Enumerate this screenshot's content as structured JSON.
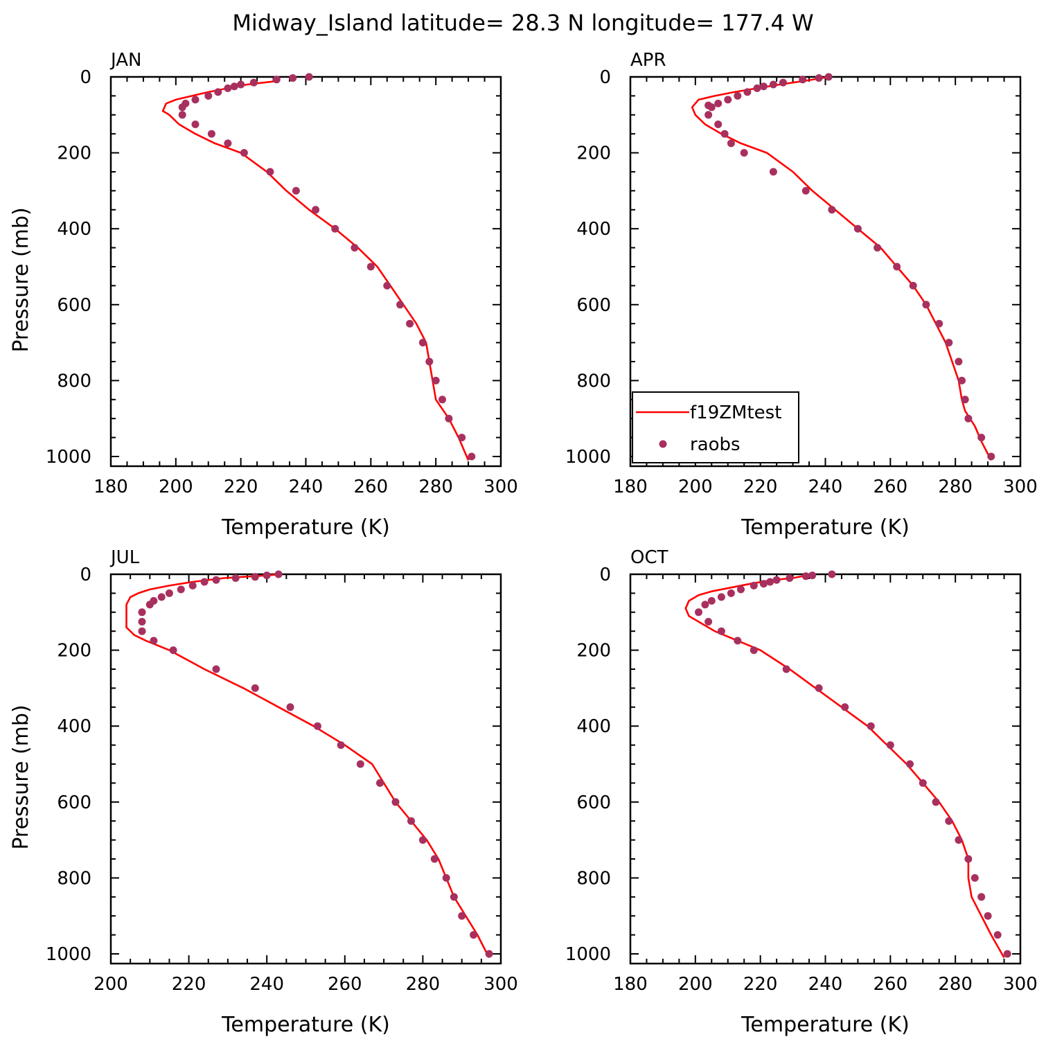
{
  "title": "Midway_Island   latitude= 28.3 N longitude= 177.4 W",
  "legend": {
    "model_label": "f19ZMtest",
    "obs_label": "raobs",
    "placement": "bottom-left of APR panel"
  },
  "colors": {
    "model": "#ff0000",
    "obs": "#a8305f",
    "axis": "#000000"
  },
  "chart_data": [
    {
      "type": "line",
      "panel": "JAN",
      "xlabel": "Temperature (K)",
      "ylabel": "Pressure (mb)",
      "xlim": [
        180,
        300
      ],
      "ylim": [
        1000,
        0
      ],
      "y_inverted": true,
      "xticks": [
        "180",
        "200",
        "220",
        "240",
        "260",
        "280",
        "300"
      ],
      "yticks": [
        "0",
        "200",
        "400",
        "600",
        "800",
        "1000"
      ],
      "series": [
        {
          "name": "f19ZMtest",
          "kind": "line",
          "x": [
            232,
            227,
            222,
            216,
            210,
            205,
            200,
            197,
            196,
            198,
            201,
            206,
            212,
            220,
            228,
            234,
            241,
            249,
            256,
            262,
            266,
            270,
            274,
            277,
            278,
            279,
            280,
            284,
            287,
            290
          ],
          "y": [
            10,
            15,
            20,
            30,
            40,
            50,
            60,
            70,
            90,
            100,
            125,
            150,
            175,
            200,
            250,
            300,
            350,
            400,
            450,
            500,
            550,
            600,
            650,
            700,
            750,
            800,
            850,
            900,
            950,
            1010
          ]
        },
        {
          "name": "raobs",
          "kind": "scatter",
          "x": [
            241,
            236,
            231,
            224,
            220,
            218,
            216,
            213,
            210,
            206,
            203,
            202,
            202,
            206,
            211,
            216,
            221,
            229,
            237,
            243,
            249,
            255,
            260,
            265,
            269,
            272,
            276,
            278,
            280,
            282,
            284,
            288,
            291
          ],
          "y": [
            0,
            3,
            7,
            15,
            20,
            25,
            30,
            40,
            50,
            60,
            70,
            80,
            100,
            125,
            150,
            175,
            200,
            250,
            300,
            350,
            400,
            450,
            500,
            550,
            600,
            650,
            700,
            750,
            800,
            850,
            900,
            950,
            1000
          ]
        }
      ]
    },
    {
      "type": "line",
      "panel": "APR",
      "xlabel": "Temperature (K)",
      "ylabel": "",
      "xlim": [
        180,
        300
      ],
      "ylim": [
        1000,
        0
      ],
      "y_inverted": true,
      "xticks": [
        "180",
        "200",
        "220",
        "240",
        "260",
        "280",
        "300"
      ],
      "yticks": [
        "0",
        "200",
        "400",
        "600",
        "800",
        "1000"
      ],
      "series": [
        {
          "name": "f19ZMtest",
          "kind": "line",
          "x": [
            241,
            234,
            226,
            219,
            212,
            206,
            201,
            199,
            200,
            203,
            208,
            214,
            222,
            230,
            236,
            243,
            250,
            257,
            262,
            267,
            271,
            274,
            277,
            279,
            281,
            282,
            283,
            286,
            288,
            291
          ],
          "y": [
            0,
            10,
            20,
            30,
            40,
            50,
            60,
            80,
            100,
            125,
            150,
            175,
            200,
            250,
            300,
            350,
            400,
            450,
            500,
            550,
            600,
            650,
            700,
            750,
            800,
            850,
            880,
            920,
            960,
            1010
          ]
        },
        {
          "name": "raobs",
          "kind": "scatter",
          "x": [
            241,
            238,
            233,
            227,
            224,
            221,
            219,
            216,
            213,
            210,
            207,
            205,
            204,
            204,
            207,
            209,
            211,
            215,
            224,
            234,
            242,
            250,
            256,
            262,
            267,
            271,
            275,
            278,
            281,
            282,
            283,
            284,
            288,
            291
          ],
          "y": [
            0,
            3,
            7,
            15,
            20,
            25,
            30,
            40,
            50,
            60,
            70,
            80,
            100,
            75,
            125,
            150,
            175,
            200,
            250,
            300,
            350,
            400,
            450,
            500,
            550,
            600,
            650,
            700,
            750,
            800,
            850,
            900,
            950,
            1000
          ]
        }
      ]
    },
    {
      "type": "line",
      "panel": "JUL",
      "xlabel": "Temperature (K)",
      "ylabel": "Pressure (mb)",
      "xlim": [
        200,
        300
      ],
      "ylim": [
        1000,
        0
      ],
      "y_inverted": true,
      "xticks": [
        "200",
        "220",
        "240",
        "260",
        "280",
        "300"
      ],
      "yticks": [
        "0",
        "200",
        "400",
        "600",
        "800",
        "1000"
      ],
      "series": [
        {
          "name": "f19ZMtest",
          "kind": "line",
          "x": [
            244,
            237,
            229,
            221,
            215,
            210,
            207,
            205,
            204,
            204,
            206,
            209,
            215,
            224,
            234,
            243,
            252,
            260,
            267,
            273,
            277,
            281,
            284,
            286,
            288,
            291,
            294,
            297
          ],
          "y": [
            0,
            5,
            10,
            20,
            30,
            40,
            50,
            60,
            80,
            140,
            160,
            175,
            200,
            250,
            300,
            350,
            400,
            450,
            500,
            600,
            650,
            700,
            750,
            800,
            850,
            900,
            950,
            1010
          ]
        },
        {
          "name": "raobs",
          "kind": "scatter",
          "x": [
            243,
            240,
            237,
            232,
            227,
            224,
            221,
            218,
            215,
            213,
            211,
            210,
            208,
            208,
            208,
            211,
            216,
            227,
            237,
            246,
            253,
            259,
            264,
            269,
            273,
            277,
            280,
            283,
            286,
            288,
            290,
            293,
            297
          ],
          "y": [
            0,
            3,
            7,
            10,
            15,
            20,
            30,
            40,
            50,
            60,
            70,
            80,
            100,
            125,
            150,
            175,
            200,
            250,
            300,
            350,
            400,
            450,
            500,
            550,
            600,
            650,
            700,
            750,
            800,
            850,
            900,
            950,
            1000
          ]
        }
      ]
    },
    {
      "type": "line",
      "panel": "OCT",
      "xlabel": "Temperature (K)",
      "ylabel": "",
      "xlim": [
        180,
        300
      ],
      "ylim": [
        1000,
        0
      ],
      "y_inverted": true,
      "xticks": [
        "180",
        "200",
        "220",
        "240",
        "260",
        "280",
        "300"
      ],
      "yticks": [
        "0",
        "200",
        "400",
        "600",
        "800",
        "1000"
      ],
      "series": [
        {
          "name": "f19ZMtest",
          "kind": "line",
          "x": [
            236,
            230,
            224,
            217,
            211,
            205,
            201,
            198,
            197,
            198,
            201,
            206,
            213,
            220,
            229,
            237,
            245,
            253,
            259,
            265,
            270,
            275,
            279,
            282,
            284,
            284,
            285,
            288,
            291,
            295
          ],
          "y": [
            0,
            10,
            15,
            25,
            35,
            45,
            55,
            70,
            90,
            110,
            125,
            150,
            175,
            200,
            250,
            300,
            350,
            400,
            450,
            500,
            550,
            600,
            650,
            700,
            750,
            800,
            850,
            900,
            950,
            1010
          ]
        },
        {
          "name": "raobs",
          "kind": "scatter",
          "x": [
            242,
            236,
            234,
            229,
            225,
            223,
            221,
            218,
            214,
            211,
            208,
            205,
            203,
            201,
            204,
            208,
            213,
            218,
            228,
            238,
            246,
            254,
            260,
            266,
            270,
            274,
            278,
            281,
            284,
            286,
            288,
            290,
            293,
            296
          ],
          "y": [
            0,
            3,
            5,
            10,
            15,
            20,
            25,
            30,
            40,
            50,
            60,
            70,
            80,
            100,
            125,
            150,
            175,
            200,
            250,
            300,
            350,
            400,
            450,
            500,
            550,
            600,
            650,
            700,
            750,
            800,
            850,
            900,
            950,
            1000
          ]
        }
      ]
    }
  ]
}
